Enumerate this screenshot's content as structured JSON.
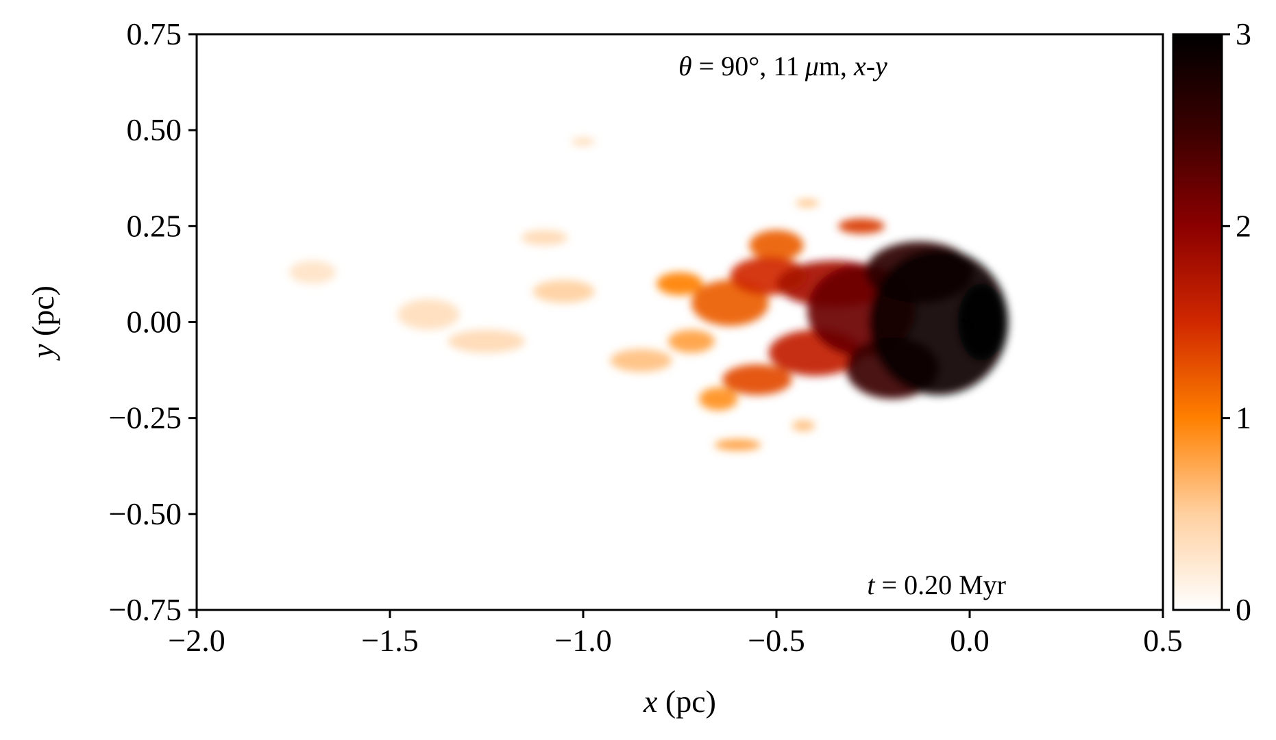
{
  "chart_data": {
    "type": "heatmap",
    "xlabel": {
      "var": "x",
      "unit": " (pc)"
    },
    "ylabel": {
      "var": "y",
      "unit": " (pc)"
    },
    "xlim": [
      -2.0,
      0.5
    ],
    "ylim": [
      -0.75,
      0.75
    ],
    "x_ticks": [
      -2.0,
      -1.5,
      -1.0,
      -0.5,
      0.0,
      0.5
    ],
    "x_tick_labels": [
      "−2.0",
      "−1.5",
      "−1.0",
      "−0.5",
      "0.0",
      "0.5"
    ],
    "y_ticks": [
      -0.75,
      -0.5,
      -0.25,
      0.0,
      0.25,
      0.5,
      0.75
    ],
    "y_tick_labels": [
      "−0.75",
      "−0.50",
      "−0.25",
      "0.00",
      "0.25",
      "0.50",
      "0.75"
    ],
    "grid": false,
    "colorbar": {
      "range": [
        0,
        3
      ],
      "ticks": [
        0,
        1,
        2,
        3
      ],
      "tick_labels": [
        "0",
        "1",
        "2",
        "3"
      ],
      "colormap": "gist_heat_r",
      "colors": [
        "#ffffff",
        "#ffd0a0",
        "#ff8000",
        "#d02800",
        "#8b0000",
        "#3a0000",
        "#000000"
      ]
    },
    "annotation_top": {
      "theta_symbol": "θ",
      "rest": " = 90°, 11 ",
      "mu": "μ",
      "unit": "m, ",
      "proj": "x-y"
    },
    "annotation_bottom": {
      "t_symbol": "t",
      "rest": " = 0.20 Myr"
    },
    "star_marker": {
      "x": 0.0,
      "y": 0.0,
      "color": "#b22222",
      "symbol": "★"
    },
    "blobs": [
      {
        "x": -0.08,
        "y": 0.0,
        "rx": 0.18,
        "ry": 0.19,
        "value": 2.9
      },
      {
        "x": 0.03,
        "y": 0.0,
        "rx": 0.06,
        "ry": 0.1,
        "value": 3.0
      },
      {
        "x": -0.13,
        "y": 0.13,
        "rx": 0.14,
        "ry": 0.08,
        "value": 2.6
      },
      {
        "x": -0.2,
        "y": -0.12,
        "rx": 0.12,
        "ry": 0.08,
        "value": 2.5
      },
      {
        "x": -0.28,
        "y": 0.03,
        "rx": 0.14,
        "ry": 0.12,
        "value": 2.2
      },
      {
        "x": -0.35,
        "y": 0.1,
        "rx": 0.15,
        "ry": 0.06,
        "value": 1.8
      },
      {
        "x": -0.4,
        "y": -0.08,
        "rx": 0.12,
        "ry": 0.06,
        "value": 1.6
      },
      {
        "x": -0.52,
        "y": 0.12,
        "rx": 0.1,
        "ry": 0.05,
        "value": 1.5
      },
      {
        "x": -0.62,
        "y": 0.05,
        "rx": 0.1,
        "ry": 0.06,
        "value": 1.2
      },
      {
        "x": -0.55,
        "y": -0.15,
        "rx": 0.09,
        "ry": 0.04,
        "value": 1.3
      },
      {
        "x": -0.5,
        "y": 0.2,
        "rx": 0.07,
        "ry": 0.04,
        "value": 1.2
      },
      {
        "x": -0.75,
        "y": 0.1,
        "rx": 0.06,
        "ry": 0.03,
        "value": 1.0
      },
      {
        "x": -0.72,
        "y": -0.05,
        "rx": 0.06,
        "ry": 0.03,
        "value": 0.8
      },
      {
        "x": -0.65,
        "y": -0.2,
        "rx": 0.05,
        "ry": 0.03,
        "value": 0.9
      },
      {
        "x": -0.85,
        "y": -0.1,
        "rx": 0.08,
        "ry": 0.03,
        "value": 0.6
      },
      {
        "x": -1.05,
        "y": 0.08,
        "rx": 0.08,
        "ry": 0.03,
        "value": 0.5
      },
      {
        "x": -1.25,
        "y": -0.05,
        "rx": 0.1,
        "ry": 0.03,
        "value": 0.4
      },
      {
        "x": -1.4,
        "y": 0.02,
        "rx": 0.08,
        "ry": 0.04,
        "value": 0.35
      },
      {
        "x": -1.7,
        "y": 0.13,
        "rx": 0.06,
        "ry": 0.03,
        "value": 0.3
      },
      {
        "x": -1.1,
        "y": 0.22,
        "rx": 0.06,
        "ry": 0.02,
        "value": 0.4
      },
      {
        "x": -0.6,
        "y": -0.32,
        "rx": 0.06,
        "ry": 0.015,
        "value": 0.8
      },
      {
        "x": -0.42,
        "y": 0.31,
        "rx": 0.03,
        "ry": 0.01,
        "value": 0.6
      },
      {
        "x": -1.0,
        "y": 0.47,
        "rx": 0.03,
        "ry": 0.01,
        "value": 0.4
      },
      {
        "x": -0.43,
        "y": -0.27,
        "rx": 0.03,
        "ry": 0.015,
        "value": 0.6
      },
      {
        "x": -0.28,
        "y": 0.25,
        "rx": 0.06,
        "ry": 0.02,
        "value": 1.4
      }
    ]
  }
}
